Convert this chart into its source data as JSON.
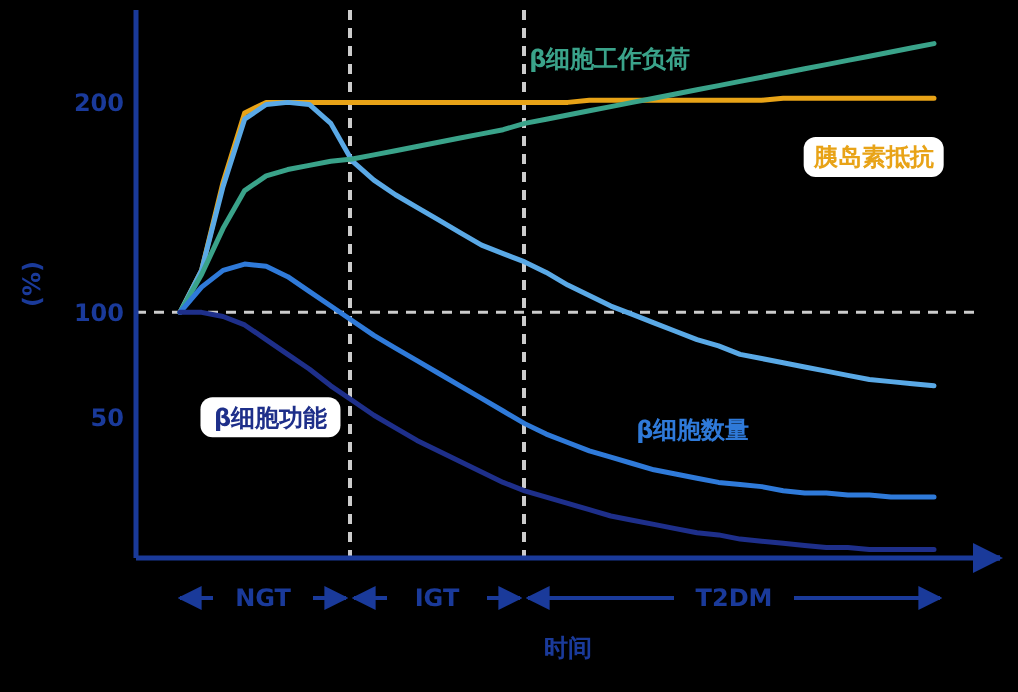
{
  "chart_data": {
    "type": "line",
    "xlabel": "时间",
    "ylabel": "(%)",
    "ylim": [
      -17,
      244
    ],
    "yticks": [
      50,
      100,
      200
    ],
    "tick_labels": "y",
    "grid": false,
    "legend": false,
    "marker": "none",
    "line_style": "solid",
    "categories": [
      null,
      null,
      null,
      null,
      null,
      null,
      null,
      null,
      null,
      null,
      null,
      null,
      null,
      null,
      null,
      null,
      null,
      null,
      null,
      null,
      null,
      null,
      null,
      null,
      null,
      null,
      null,
      null,
      null,
      null,
      null,
      null,
      null,
      null,
      null,
      null
    ],
    "series": [
      {
        "name": "胰岛素抵抗",
        "color": "#e8a317",
        "values": [
          100,
          120,
          162,
          195,
          200,
          200,
          200,
          200,
          200,
          200,
          200,
          200,
          200,
          200,
          200,
          200,
          200,
          200,
          200,
          201,
          201,
          201,
          201,
          201,
          201,
          201,
          201,
          201,
          202,
          202,
          202,
          202,
          202,
          202,
          202,
          202
        ]
      },
      {
        "color": "#5aa9e6",
        "values": [
          100,
          120,
          160,
          192,
          199,
          200,
          199,
          190,
          172,
          163,
          156,
          150,
          144,
          138,
          132,
          128,
          124,
          119,
          113,
          108,
          103,
          99,
          95,
          91,
          87,
          84,
          80,
          78,
          76,
          74,
          72,
          70,
          68,
          67,
          66,
          65
        ]
      },
      {
        "name": "β细胞工作负荷",
        "color": "#3aa38a",
        "values": [
          100,
          118,
          140,
          158,
          165,
          168,
          170,
          172,
          173,
          175,
          177,
          179,
          181,
          183,
          185,
          187,
          190,
          192,
          194,
          196,
          198,
          200,
          202,
          204,
          206,
          208,
          210,
          212,
          214,
          216,
          218,
          220,
          222,
          224,
          226,
          228
        ]
      },
      {
        "name": "β细胞数量",
        "color": "#2f7ad9",
        "values": [
          100,
          112,
          120,
          123,
          122,
          117,
          110,
          103,
          96,
          89,
          83,
          77,
          71,
          65,
          59,
          53,
          47,
          42,
          38,
          34,
          31,
          28,
          25,
          23,
          21,
          19,
          18,
          17,
          15,
          14,
          14,
          13,
          13,
          12,
          12,
          12
        ]
      },
      {
        "name": "β细胞功能",
        "color": "#1e2f8a",
        "values": [
          100,
          100,
          98,
          94,
          87,
          80,
          73,
          65,
          58,
          51,
          45,
          39,
          34,
          29,
          24,
          19,
          15,
          12,
          9,
          6,
          3,
          1,
          -1,
          -3,
          -5,
          -6,
          -8,
          -9,
          -10,
          -11,
          -12,
          -12,
          -13,
          -13,
          -13,
          -13
        ]
      }
    ],
    "ref_lines": [
      {
        "axis": "y",
        "value": 100,
        "color": "#cccccc",
        "line_style": "dashed"
      }
    ],
    "annotations": [
      "NGT",
      "IGT",
      "T2DM"
    ]
  }
}
